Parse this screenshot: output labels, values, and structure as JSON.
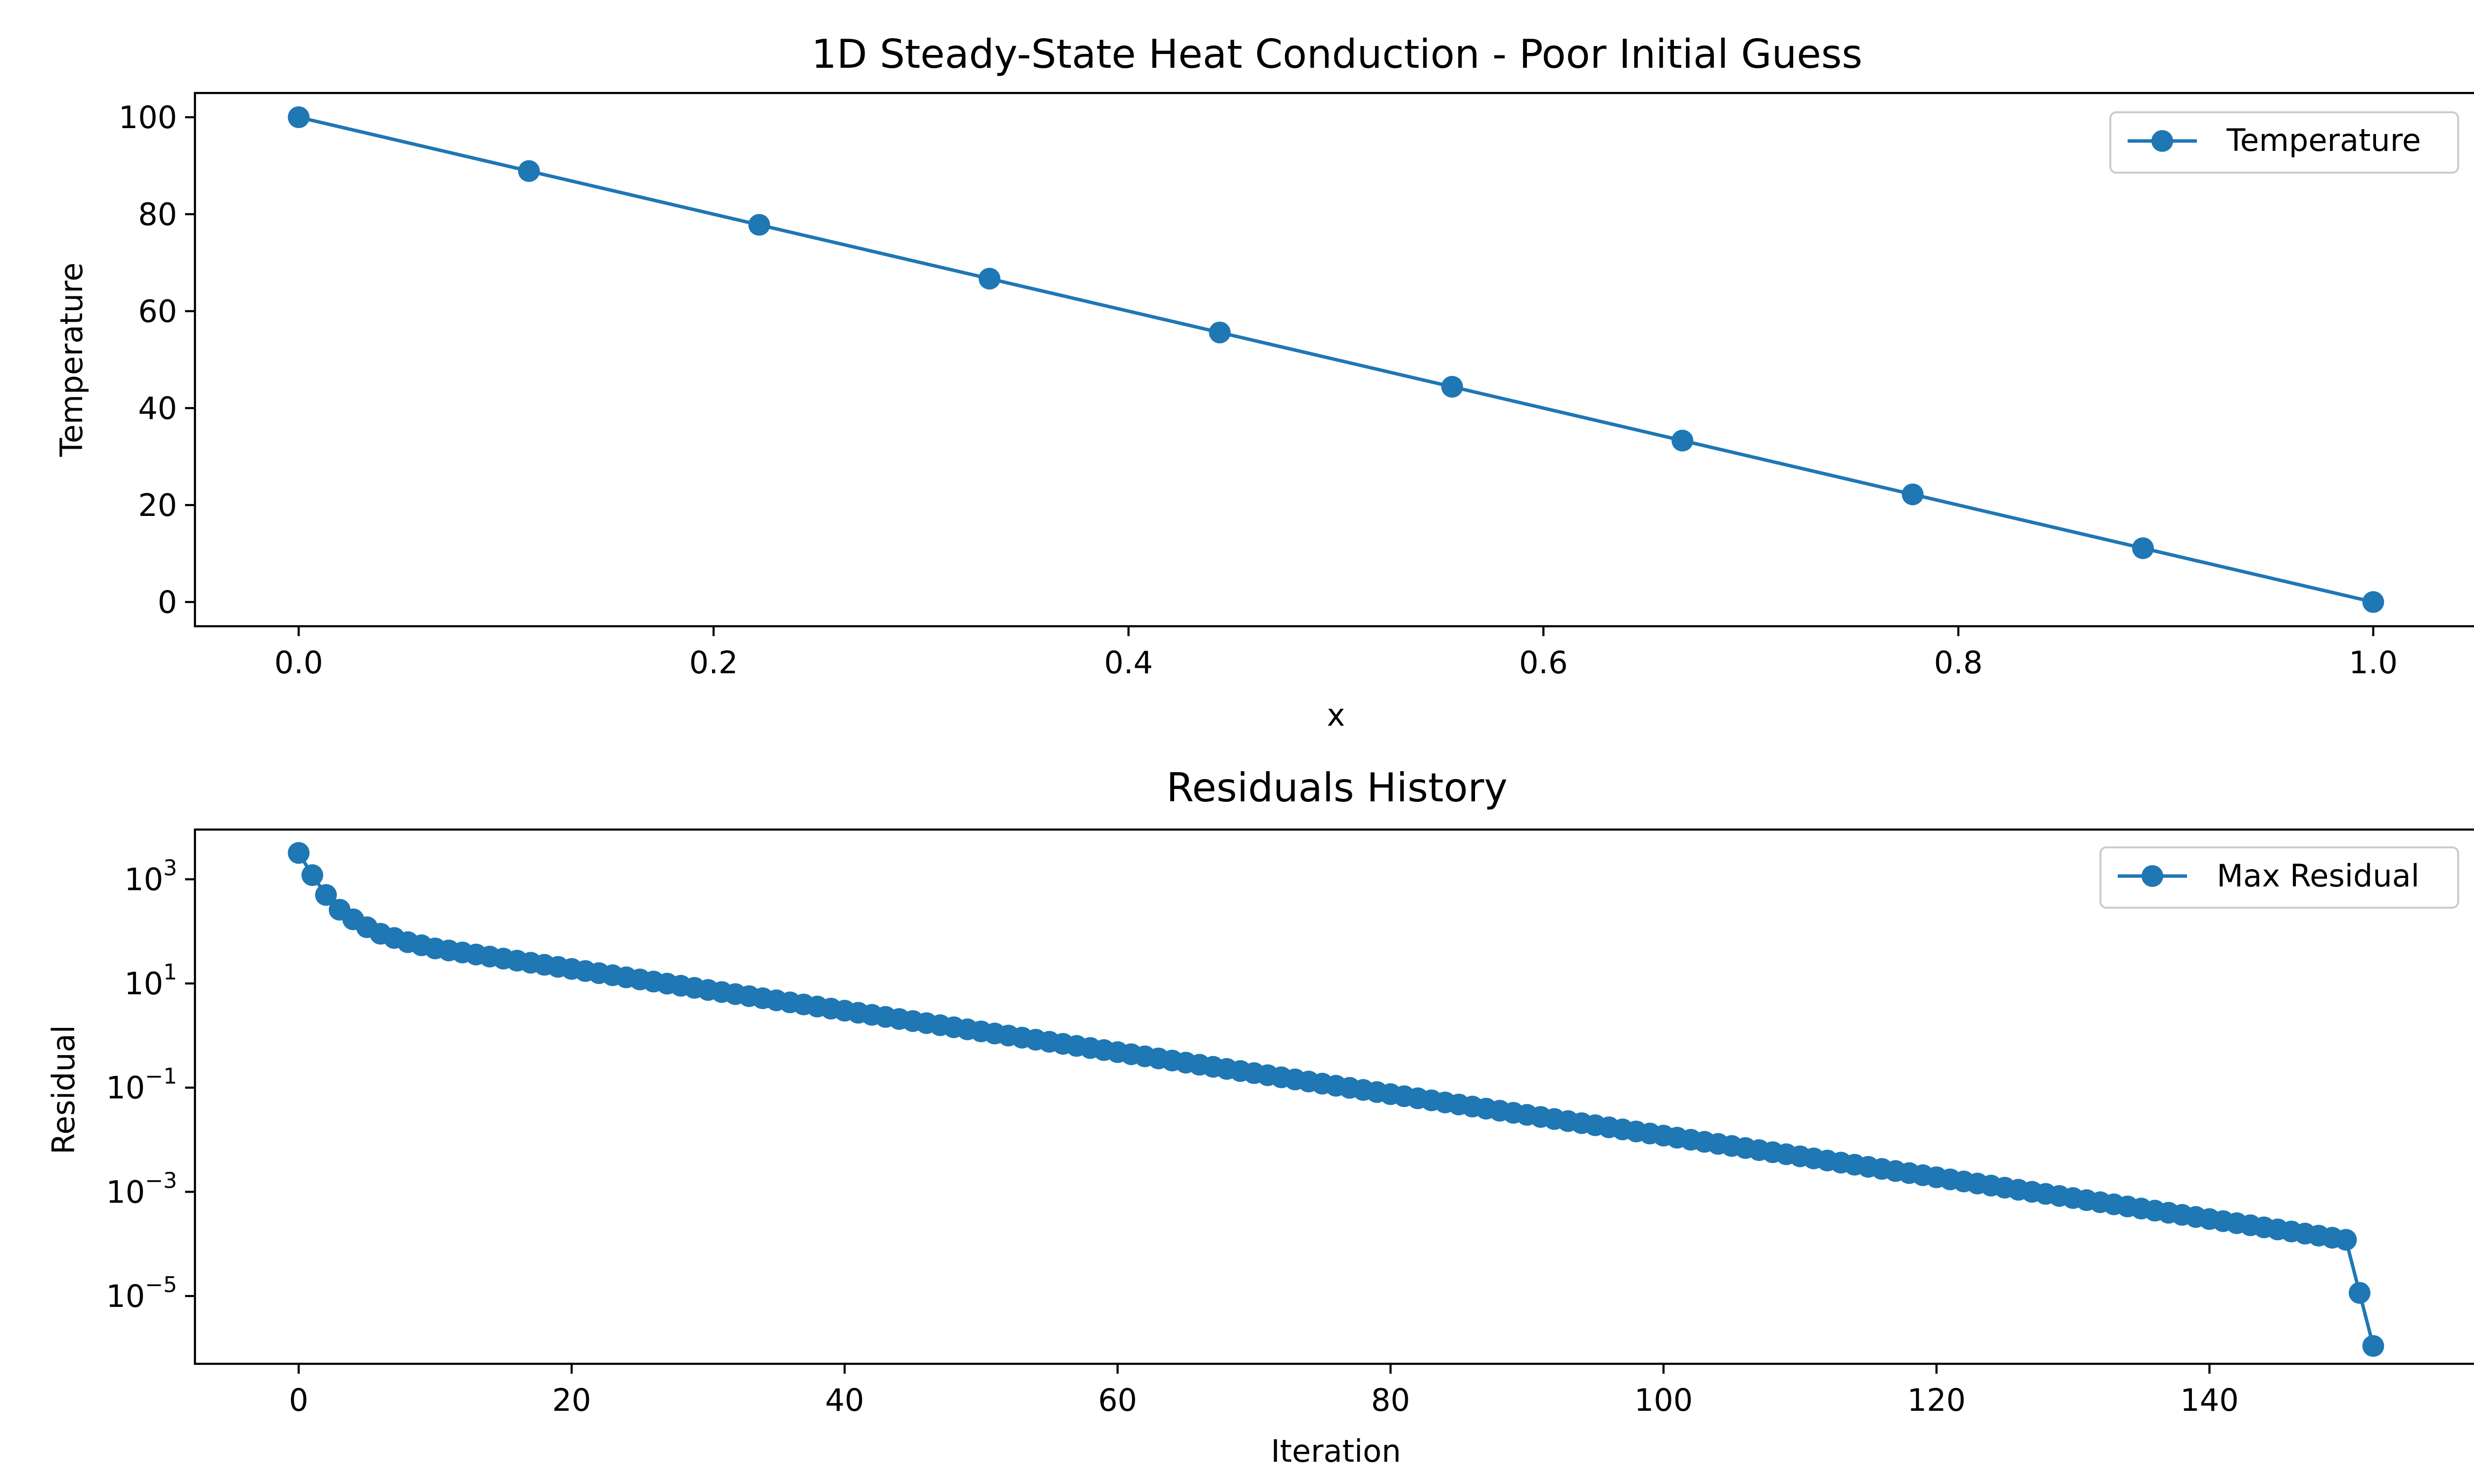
{
  "colors": {
    "series": "#1f77b4"
  },
  "chart_data": [
    {
      "type": "line",
      "title": "1D Steady-State Heat Conduction - Poor Initial Guess",
      "xlabel": "x",
      "ylabel": "Temperature",
      "xlim": [
        -0.05,
        1.05
      ],
      "ylim": [
        -5,
        105
      ],
      "xticks": [
        0.0,
        0.2,
        0.4,
        0.6,
        0.8,
        1.0
      ],
      "xtick_labels": [
        "0.0",
        "0.2",
        "0.4",
        "0.6",
        "0.8",
        "1.0"
      ],
      "yticks": [
        0,
        20,
        40,
        60,
        80,
        100
      ],
      "ytick_labels": [
        "0",
        "20",
        "40",
        "60",
        "80",
        "100"
      ],
      "legend": {
        "position": "top-right",
        "entries": [
          "Temperature"
        ]
      },
      "marker": "circle",
      "series": [
        {
          "name": "Temperature",
          "x": [
            0.0,
            0.111,
            0.222,
            0.333,
            0.444,
            0.556,
            0.667,
            0.778,
            0.889,
            1.0
          ],
          "y": [
            100,
            88.9,
            77.8,
            66.7,
            55.6,
            44.4,
            33.3,
            22.2,
            11.1,
            0
          ]
        }
      ]
    },
    {
      "type": "line",
      "title": "Residuals History",
      "xlabel": "Iteration",
      "ylabel": "Residual",
      "yscale": "log",
      "xlim": [
        -7.6,
        159.6
      ],
      "ylim": [
        5e-07,
        9000
      ],
      "xticks": [
        0,
        20,
        40,
        60,
        80,
        100,
        120,
        140
      ],
      "xtick_labels": [
        "0",
        "20",
        "40",
        "60",
        "80",
        "100",
        "120",
        "140"
      ],
      "yticks": [
        {
          "base": "10",
          "exp": "3",
          "value": 1000
        },
        {
          "base": "10",
          "exp": "1",
          "value": 10
        },
        {
          "base": "10",
          "exp": "−1",
          "value": 0.1
        },
        {
          "base": "10",
          "exp": "−3",
          "value": 0.001
        },
        {
          "base": "10",
          "exp": "−5",
          "value": 1e-05
        }
      ],
      "legend": {
        "position": "top-right",
        "entries": [
          "Max Residual"
        ]
      },
      "marker": "circle",
      "series": [
        {
          "name": "Max Residual",
          "iterations": [
            0,
            152
          ],
          "residual_samples": [
            [
              0,
              3200
            ],
            [
              1,
              1200
            ],
            [
              2,
              500
            ],
            [
              3,
              260
            ],
            [
              4,
              170
            ],
            [
              5,
              120
            ],
            [
              6,
              90
            ],
            [
              8,
              62
            ],
            [
              10,
              47
            ],
            [
              15,
              30
            ],
            [
              20,
              19
            ],
            [
              30,
              7.5
            ],
            [
              40,
              3.0
            ],
            [
              50,
              1.2
            ],
            [
              60,
              0.48
            ],
            [
              70,
              0.19
            ],
            [
              80,
              0.075
            ],
            [
              90,
              0.03
            ],
            [
              100,
              0.012
            ],
            [
              110,
              0.0048
            ],
            [
              120,
              0.0019
            ],
            [
              130,
              0.00076
            ],
            [
              140,
              0.0003
            ],
            [
              150,
              0.00012
            ],
            [
              152,
              1.1e-06
            ]
          ]
        }
      ]
    }
  ]
}
